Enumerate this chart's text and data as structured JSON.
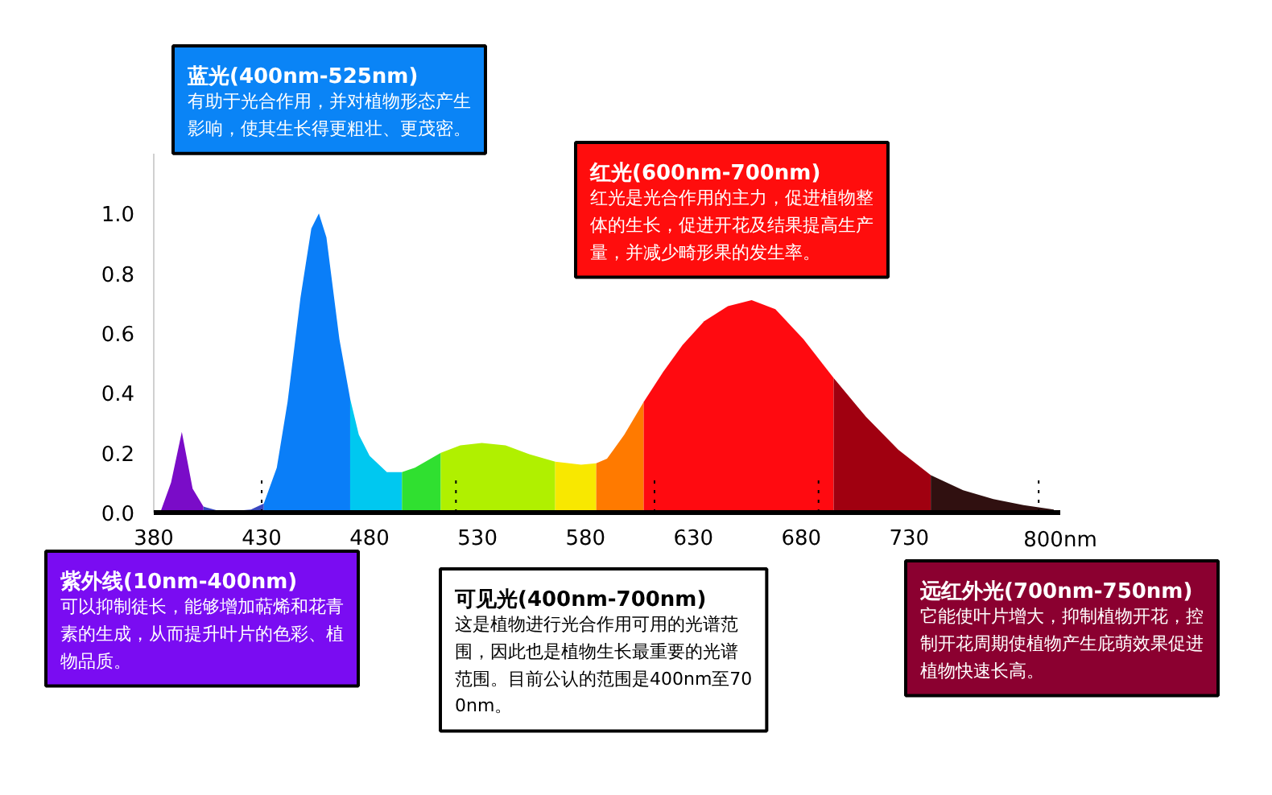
{
  "chart_data": {
    "type": "area",
    "series": [
      {
        "color": "#7a0cc8",
        "x": [
          383,
          388,
          393,
          398,
          403
        ],
        "values": [
          0.0,
          0.1,
          0.27,
          0.08,
          0.02
        ]
      },
      {
        "color": "#3a48c0",
        "x": [
          403,
          410,
          416,
          425,
          431
        ],
        "values": [
          0.02,
          0.006,
          0.005,
          0.01,
          0.03
        ]
      },
      {
        "color": "#0a7ef8",
        "x": [
          431,
          437,
          442,
          448,
          453,
          456.5,
          460,
          466,
          471
        ],
        "values": [
          0.03,
          0.15,
          0.37,
          0.72,
          0.95,
          1.0,
          0.92,
          0.58,
          0.38
        ]
      },
      {
        "color": "#00c8f0",
        "x": [
          471,
          475,
          480,
          488,
          495
        ],
        "values": [
          0.38,
          0.26,
          0.19,
          0.135,
          0.135
        ]
      },
      {
        "color": "#30e030",
        "x": [
          495,
          501,
          507,
          513
        ],
        "values": [
          0.135,
          0.15,
          0.175,
          0.2
        ]
      },
      {
        "color": "#b0f000",
        "x": [
          513,
          522,
          532,
          543,
          554,
          566
        ],
        "values": [
          0.2,
          0.225,
          0.233,
          0.225,
          0.195,
          0.17
        ]
      },
      {
        "color": "#f8e800",
        "x": [
          566,
          578,
          585
        ],
        "values": [
          0.17,
          0.16,
          0.165
        ]
      },
      {
        "color": "#ff7a00",
        "x": [
          585,
          590,
          598,
          607
        ],
        "values": [
          0.165,
          0.18,
          0.26,
          0.37
        ]
      },
      {
        "color": "#ff0a10",
        "x": [
          607,
          616,
          625,
          635,
          646,
          657,
          668,
          681,
          695
        ],
        "values": [
          0.37,
          0.47,
          0.56,
          0.64,
          0.69,
          0.71,
          0.68,
          0.58,
          0.45
        ]
      },
      {
        "color": "#a00010",
        "x": [
          695,
          710,
          725,
          740
        ],
        "values": [
          0.45,
          0.32,
          0.21,
          0.125
        ]
      },
      {
        "color": "#301010",
        "x": [
          740,
          755,
          769,
          783,
          797
        ],
        "values": [
          0.125,
          0.075,
          0.045,
          0.025,
          0.01
        ]
      }
    ],
    "xlim": [
      380,
      800
    ],
    "xticks": [
      380,
      430,
      480,
      530,
      580,
      630,
      680,
      730,
      {
        "value": 800,
        "label": "800nm"
      }
    ],
    "ylim": [
      0,
      1.2
    ],
    "yticks": [
      {
        "value": 0,
        "label": "0.0"
      },
      0.2,
      0.4,
      0.6,
      0.8,
      {
        "value": 1,
        "label": "1.0"
      }
    ],
    "grid": false,
    "ref_lines": [
      {
        "axis": "x",
        "value": 430,
        "line_style": "dotted",
        "color": "#000000"
      },
      {
        "axis": "x",
        "value": 520,
        "line_style": "dotted",
        "color": "#000000"
      },
      {
        "axis": "x",
        "value": 612,
        "line_style": "dotted",
        "color": "#000000"
      },
      {
        "axis": "x",
        "value": 688,
        "line_style": "dotted",
        "color": "#000000"
      },
      {
        "axis": "x",
        "value": 790,
        "line_style": "dotted",
        "color": "#000000"
      }
    ],
    "annotations": [
      "蓝光(400nm-525nm)",
      "有助于光合作用，并对植物形态产生影响，使其生长得更粗壮、更茂密。",
      "红光(600nm-700nm)",
      "红光是光合作用的主力，促进植物整体的生长，促进开花及结果提高生产量，并减少畸形果的发生率。",
      "紫外线(10nm-400nm)",
      "可以抑制徒长，能够增加萜烯和花青素的生成，从而提升叶片的色彩、植物品质。",
      "可见光(400nm-700nm)",
      "这是植物进行光合作用可用的光谱范围，因此也是植物生长最重要的光谱范围。目前公认的范围是400nm至700nm。",
      "远红外光(700nm-750nm)",
      "它能使叶片增大，抑制植物开花，控制开花周期使植物产生庇萌效果促进植物快速长高。"
    ]
  }
}
